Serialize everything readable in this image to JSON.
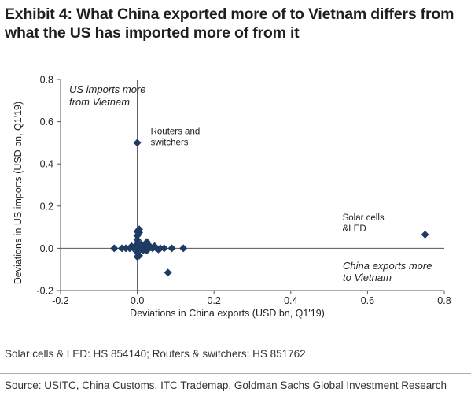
{
  "title": {
    "line1": "Exhibit 4: What China exported more of to Vietnam differs from",
    "line2": "what the US has imported more of from it"
  },
  "footnote": "Solar cells & LED: HS 854140; Routers & switchers: HS 851762",
  "source": "Source: USITC, China Customs, ITC Trademap, Goldman Sachs Global Investment Research",
  "chart_data": {
    "type": "scatter",
    "xlabel": "Deviations in China exports (USD bn, Q1'19)",
    "ylabel": "Deviations in US imports (USD bn, Q1'19)",
    "xlim": [
      -0.2,
      0.8
    ],
    "ylim": [
      -0.2,
      0.8
    ],
    "x_ticks": [
      "-0.2",
      "0.0",
      "0.2",
      "0.4",
      "0.6",
      "0.8"
    ],
    "y_ticks": [
      "-0.2",
      "0.0",
      "0.2",
      "0.4",
      "0.6",
      "0.8"
    ],
    "grid": false,
    "marker": "diamond",
    "marker_color": "#1f3b63",
    "quadrant_labels": {
      "upper_left": [
        "US imports more",
        "from Vietnam"
      ],
      "lower_right": [
        "China exports more",
        "to Vietnam"
      ]
    },
    "annotations": [
      {
        "lines": [
          "Routers and",
          "switchers"
        ],
        "x": 0.0,
        "y": 0.5
      },
      {
        "lines": [
          "Solar cells",
          "&LED"
        ],
        "x": 0.75,
        "y": 0.065
      }
    ],
    "points": [
      {
        "x": 0.0,
        "y": 0.5
      },
      {
        "x": 0.75,
        "y": 0.065
      },
      {
        "x": 0.08,
        "y": -0.115
      },
      {
        "x": -0.06,
        "y": 0.0
      },
      {
        "x": -0.04,
        "y": 0.0
      },
      {
        "x": -0.03,
        "y": 0.0
      },
      {
        "x": -0.02,
        "y": 0.0
      },
      {
        "x": -0.01,
        "y": 0.0
      },
      {
        "x": 0.0,
        "y": 0.0
      },
      {
        "x": 0.01,
        "y": 0.0
      },
      {
        "x": 0.02,
        "y": 0.0
      },
      {
        "x": 0.03,
        "y": 0.0
      },
      {
        "x": 0.04,
        "y": 0.0
      },
      {
        "x": 0.05,
        "y": 0.0
      },
      {
        "x": 0.06,
        "y": 0.0
      },
      {
        "x": 0.07,
        "y": 0.0
      },
      {
        "x": 0.09,
        "y": 0.0
      },
      {
        "x": 0.12,
        "y": 0.0
      },
      {
        "x": 0.0,
        "y": 0.02
      },
      {
        "x": 0.0,
        "y": 0.04
      },
      {
        "x": 0.0,
        "y": 0.06
      },
      {
        "x": 0.0,
        "y": 0.08
      },
      {
        "x": 0.005,
        "y": 0.09
      },
      {
        "x": 0.005,
        "y": 0.075
      },
      {
        "x": 0.0,
        "y": -0.02
      },
      {
        "x": 0.0,
        "y": -0.04
      },
      {
        "x": 0.005,
        "y": -0.035
      },
      {
        "x": 0.01,
        "y": 0.02
      },
      {
        "x": 0.02,
        "y": 0.01
      },
      {
        "x": 0.025,
        "y": 0.03
      },
      {
        "x": 0.03,
        "y": 0.015
      },
      {
        "x": 0.035,
        "y": 0.005
      },
      {
        "x": 0.045,
        "y": 0.01
      },
      {
        "x": 0.015,
        "y": -0.01
      },
      {
        "x": 0.025,
        "y": -0.01
      },
      {
        "x": -0.005,
        "y": 0.01
      },
      {
        "x": -0.015,
        "y": 0.01
      },
      {
        "x": 0.055,
        "y": -0.005
      }
    ]
  }
}
